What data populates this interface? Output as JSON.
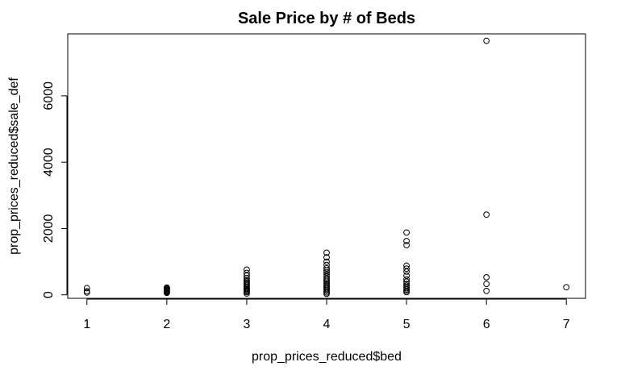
{
  "chart_data": {
    "type": "scatter",
    "title": "Sale Price by # of Beds",
    "xlabel": "prop_prices_reduced$bed",
    "ylabel": "prop_prices_reduced$sale_def",
    "xlim": [
      0.76,
      7.24
    ],
    "ylim": [
      -105,
      7869
    ],
    "x_ticks": [
      1,
      2,
      3,
      4,
      5,
      6,
      7
    ],
    "y_ticks": [
      0,
      2000,
      4000,
      6000
    ],
    "x_tick_labels": [
      "1",
      "2",
      "3",
      "4",
      "5",
      "6",
      "7"
    ],
    "y_tick_labels": [
      "0",
      "2000",
      "4000",
      "6000"
    ],
    "grid": false,
    "marker": "open-circle",
    "marker_color": "#000000",
    "points": [
      {
        "x": 1,
        "y": 70
      },
      {
        "x": 1,
        "y": 110
      },
      {
        "x": 1,
        "y": 200
      },
      {
        "x": 2,
        "y": 60
      },
      {
        "x": 2,
        "y": 80
      },
      {
        "x": 2,
        "y": 100
      },
      {
        "x": 2,
        "y": 120
      },
      {
        "x": 2,
        "y": 140
      },
      {
        "x": 2,
        "y": 160
      },
      {
        "x": 2,
        "y": 180
      },
      {
        "x": 2,
        "y": 200
      },
      {
        "x": 2,
        "y": 220
      },
      {
        "x": 3,
        "y": 40
      },
      {
        "x": 3,
        "y": 80
      },
      {
        "x": 3,
        "y": 110
      },
      {
        "x": 3,
        "y": 140
      },
      {
        "x": 3,
        "y": 170
      },
      {
        "x": 3,
        "y": 200
      },
      {
        "x": 3,
        "y": 240
      },
      {
        "x": 3,
        "y": 280
      },
      {
        "x": 3,
        "y": 320
      },
      {
        "x": 3,
        "y": 360
      },
      {
        "x": 3,
        "y": 400
      },
      {
        "x": 3,
        "y": 440
      },
      {
        "x": 3,
        "y": 500
      },
      {
        "x": 3,
        "y": 580
      },
      {
        "x": 3,
        "y": 660
      },
      {
        "x": 3,
        "y": 760
      },
      {
        "x": 4,
        "y": 30
      },
      {
        "x": 4,
        "y": 70
      },
      {
        "x": 4,
        "y": 110
      },
      {
        "x": 4,
        "y": 150
      },
      {
        "x": 4,
        "y": 190
      },
      {
        "x": 4,
        "y": 230
      },
      {
        "x": 4,
        "y": 270
      },
      {
        "x": 4,
        "y": 310
      },
      {
        "x": 4,
        "y": 350
      },
      {
        "x": 4,
        "y": 400
      },
      {
        "x": 4,
        "y": 450
      },
      {
        "x": 4,
        "y": 500
      },
      {
        "x": 4,
        "y": 560
      },
      {
        "x": 4,
        "y": 620
      },
      {
        "x": 4,
        "y": 680
      },
      {
        "x": 4,
        "y": 740
      },
      {
        "x": 4,
        "y": 800
      },
      {
        "x": 4,
        "y": 900
      },
      {
        "x": 4,
        "y": 1000
      },
      {
        "x": 4,
        "y": 1130
      },
      {
        "x": 4,
        "y": 1270
      },
      {
        "x": 5,
        "y": 80
      },
      {
        "x": 5,
        "y": 120
      },
      {
        "x": 5,
        "y": 160
      },
      {
        "x": 5,
        "y": 200
      },
      {
        "x": 5,
        "y": 240
      },
      {
        "x": 5,
        "y": 280
      },
      {
        "x": 5,
        "y": 330
      },
      {
        "x": 5,
        "y": 400
      },
      {
        "x": 5,
        "y": 470
      },
      {
        "x": 5,
        "y": 580
      },
      {
        "x": 5,
        "y": 700
      },
      {
        "x": 5,
        "y": 790
      },
      {
        "x": 5,
        "y": 880
      },
      {
        "x": 5,
        "y": 1500
      },
      {
        "x": 5,
        "y": 1620
      },
      {
        "x": 5,
        "y": 1880
      },
      {
        "x": 6,
        "y": 120
      },
      {
        "x": 6,
        "y": 330
      },
      {
        "x": 6,
        "y": 530
      },
      {
        "x": 6,
        "y": 2420
      },
      {
        "x": 6,
        "y": 7660
      },
      {
        "x": 7,
        "y": 230
      }
    ]
  }
}
